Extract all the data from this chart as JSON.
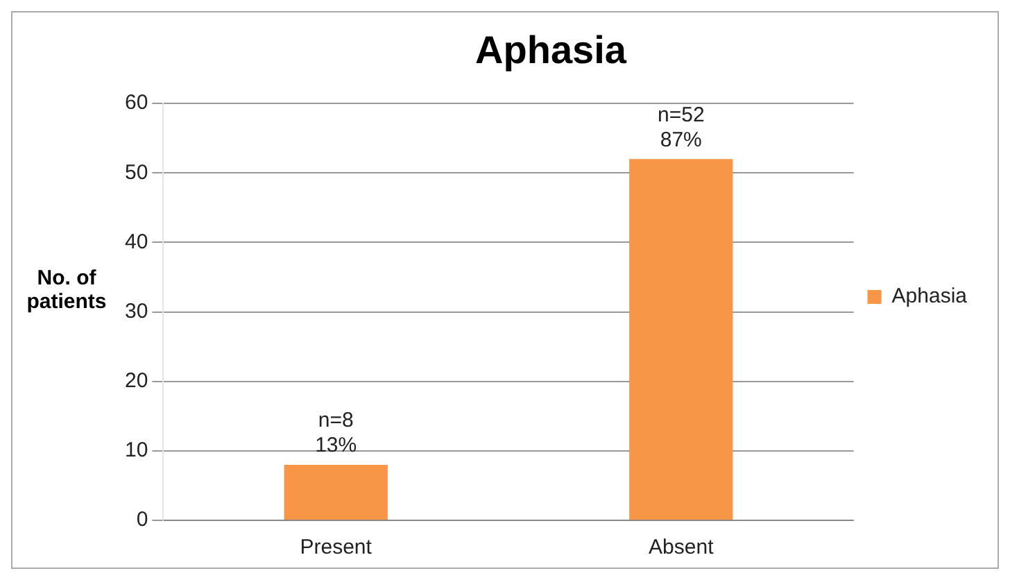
{
  "chart_data": {
    "type": "bar",
    "title": "Aphasia",
    "ylabel": "No. of patients",
    "categories": [
      "Present",
      "Absent"
    ],
    "series": [
      {
        "name": "Aphasia",
        "color": "#f79646",
        "values": [
          8,
          52
        ],
        "value_labels": [
          "n=8 13%",
          "n=52 87%"
        ]
      }
    ],
    "ylim": [
      0,
      60
    ],
    "yticks": [
      0,
      10,
      20,
      30,
      40,
      50,
      60
    ],
    "grid": "y",
    "legend": "right"
  }
}
